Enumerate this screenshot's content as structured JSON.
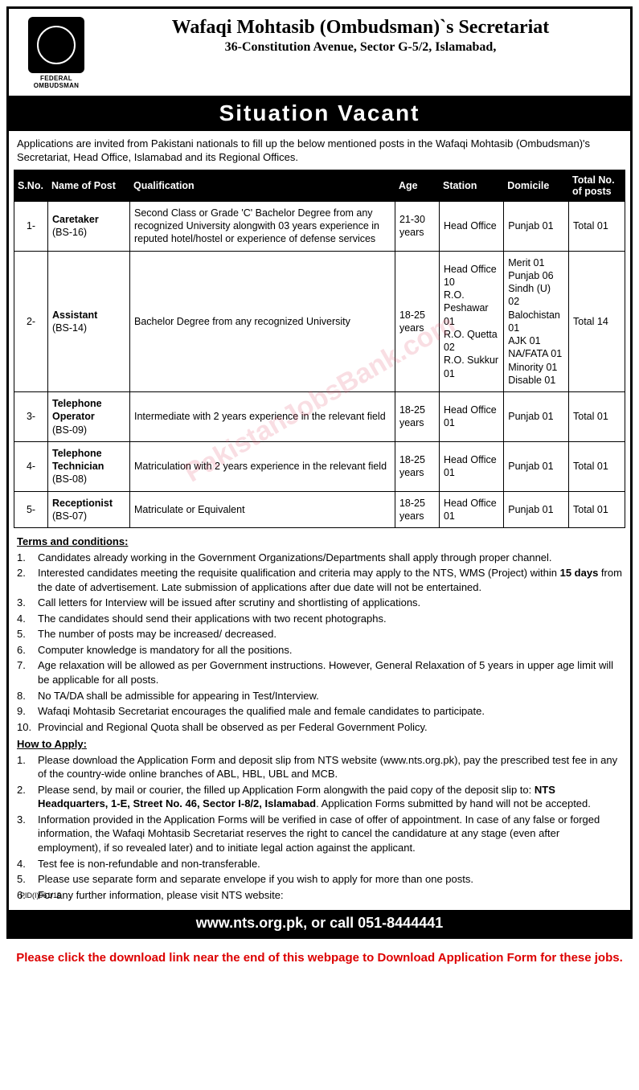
{
  "header": {
    "logo_caption": "FEDERAL OMBUDSMAN",
    "org_title": "Wafaqi Mohtasib (Ombudsman)`s Secretariat",
    "org_address": "36-Constitution Avenue, Sector G-5/2, Islamabad,"
  },
  "banner": "Situation Vacant",
  "intro": "Applications are invited from Pakistani nationals to fill up the below mentioned posts in the Wafaqi Mohtasib (Ombudsman)'s Secretariat, Head Office, Islamabad and its Regional Offices.",
  "table": {
    "headers": [
      "S.No.",
      "Name of Post",
      "Qualification",
      "Age",
      "Station",
      "Domicile",
      "Total No. of posts"
    ],
    "rows": [
      {
        "sno": "1-",
        "post": "Caretaker",
        "grade": "(BS-16)",
        "qual": "Second Class or Grade 'C' Bachelor Degree from any recognized University alongwith 03 years experience in reputed hotel/hostel or experience of defense services",
        "age": "21-30 years",
        "station": "Head Office",
        "domicile": "Punjab 01",
        "total": "Total 01"
      },
      {
        "sno": "2-",
        "post": "Assistant",
        "grade": "(BS-14)",
        "qual": "Bachelor Degree from any recognized University",
        "age": "18-25 years",
        "station": "Head Office  10\nR.O. Peshawar  01\nR.O. Quetta  02\nR.O. Sukkur  01",
        "domicile": "Merit 01\nPunjab 06\nSindh (U) 02\nBalochistan 01\nAJK 01\nNA/FATA 01\nMinority 01\nDisable 01",
        "total": "Total 14"
      },
      {
        "sno": "3-",
        "post": "Telephone Operator",
        "grade": "(BS-09)",
        "qual": "Intermediate with 2 years experience in the relevant field",
        "age": "18-25 years",
        "station": "Head Office  01",
        "domicile": "Punjab 01",
        "total": "Total 01"
      },
      {
        "sno": "4-",
        "post": "Telephone Technician",
        "grade": "(BS-08)",
        "qual": "Matriculation with 2 years experience in the relevant field",
        "age": "18-25 years",
        "station": "Head Office  01",
        "domicile": "Punjab 01",
        "total": "Total 01"
      },
      {
        "sno": "5-",
        "post": "Receptionist",
        "grade": "(BS-07)",
        "qual": "Matriculate or Equivalent",
        "age": "18-25 years",
        "station": "Head Office  01",
        "domicile": "Punjab 01",
        "total": "Total 01"
      }
    ]
  },
  "terms_heading": "Terms and conditions:",
  "terms": [
    "Candidates already working in the Government Organizations/Departments shall apply through proper channel.",
    "Interested candidates meeting the requisite qualification and criteria may apply to the NTS, WMS (Project) within 15 days from the date of advertisement. Late submission of applications after due date will not be entertained.",
    "Call letters for Interview will be issued after scrutiny and shortlisting of applications.",
    "The candidates should send their applications with two recent photographs.",
    "The number of posts may be increased/ decreased.",
    "Computer knowledge is mandatory for all the positions.",
    "Age relaxation will be allowed as per Government instructions. However, General Relaxation of 5 years in upper age limit will be applicable for all posts.",
    "No TA/DA shall be admissible for appearing in Test/Interview.",
    "Wafaqi Mohtasib Secretariat encourages the qualified male and female candidates to participate.",
    "Provincial and Regional Quota shall be observed as per Federal Government Policy."
  ],
  "apply_heading": "How to Apply:",
  "apply": [
    "Please download the Application Form and deposit slip from NTS website (www.nts.org.pk), pay the prescribed test fee in any of the country-wide online branches of ABL, HBL, UBL and MCB.",
    "Please send, by mail or courier, the filled up Application Form alongwith the paid copy of the deposit slip to: NTS Headquarters, 1-E, Street No. 46, Sector I-8/2, Islamabad. Application Forms submitted by hand will not be accepted.",
    "Information provided in the Application Forms will be verified in case of offer of appointment. In case of any false or forged information, the Wafaqi Mohtasib Secretariat reserves the right to cancel the candidature at any stage (even after employment), if so revealed later) and to initiate legal action against the applicant.",
    "Test fee is non-refundable and non-transferable.",
    "Please use separate form and separate envelope if you wish to apply for more than one posts.",
    "For any further information, please visit NTS website:"
  ],
  "footer": "www.nts.org.pk, or call 051-8444441",
  "ref_code": "PID(I)961/15",
  "red_note": "Please click the download link near the end of this webpage to Download Application Form for these jobs.",
  "watermark": "PakistanJobsBank.com"
}
